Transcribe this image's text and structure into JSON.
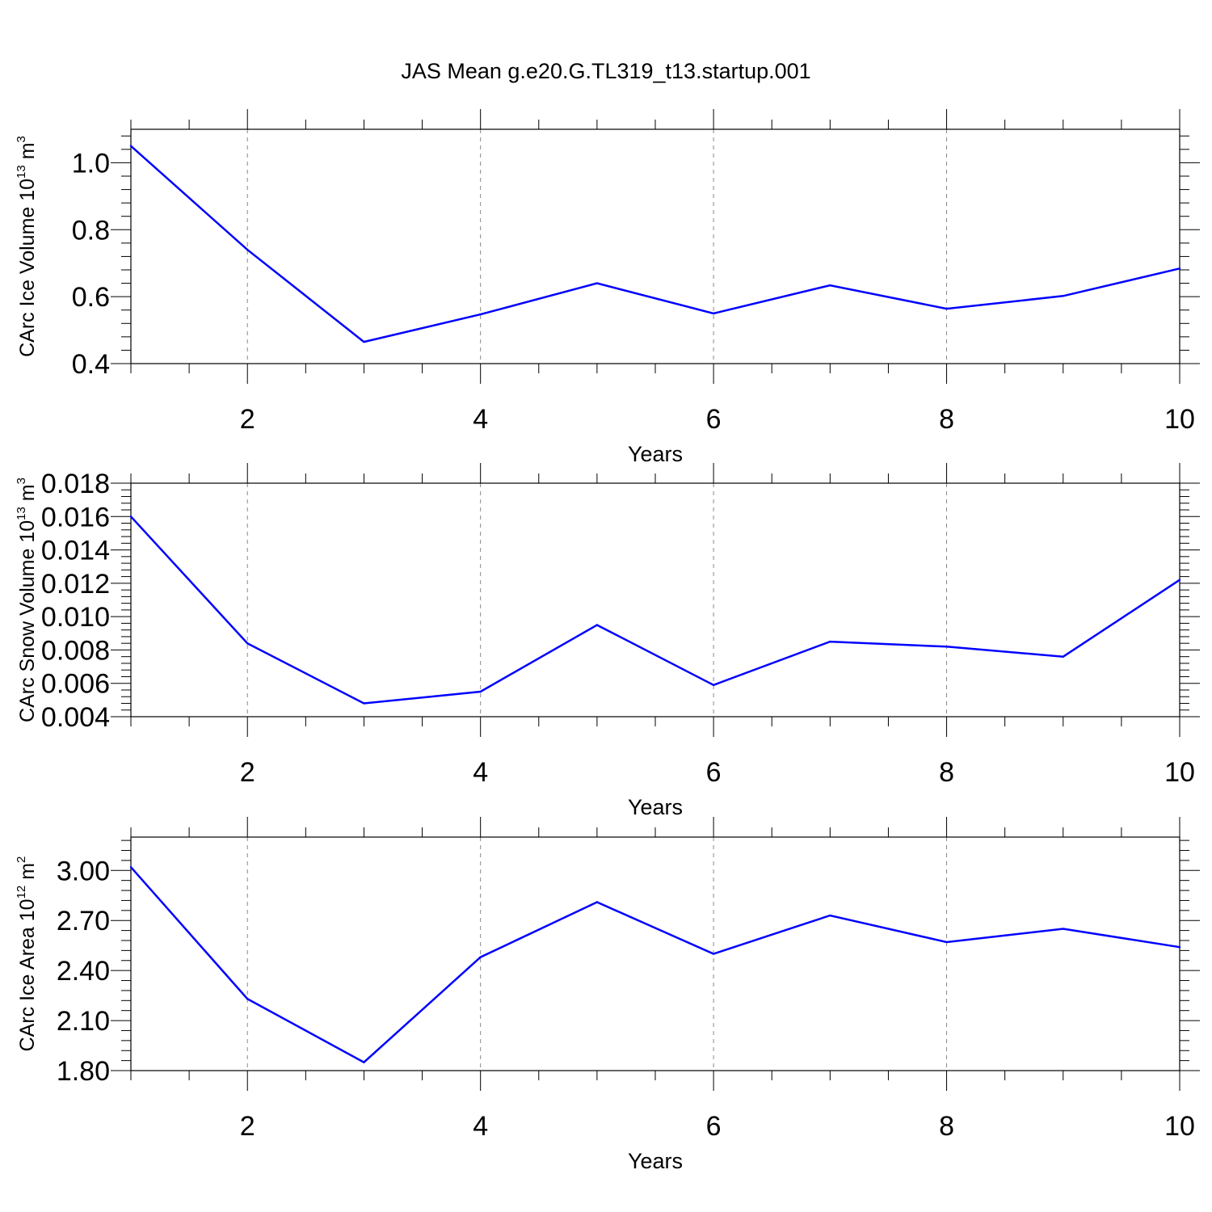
{
  "title": "JAS Mean g.e20.G.TL319_t13.startup.001",
  "chart_data": [
    {
      "type": "line",
      "ylabel": "CArc Ice Volume 10",
      "ylabel_exp": "13",
      "ylabel_unit": " m",
      "ylabel_unit_exp": "3",
      "xlabel": "Years",
      "x": [
        1,
        2,
        3,
        4,
        5,
        6,
        7,
        8,
        9,
        10
      ],
      "values": [
        1.05,
        0.74,
        0.465,
        0.547,
        0.64,
        0.55,
        0.634,
        0.564,
        0.602,
        0.684
      ],
      "xlim": [
        1,
        10
      ],
      "ylim": [
        0.4,
        1.1
      ],
      "xticks": [
        "2",
        "4",
        "6",
        "8",
        "10"
      ],
      "yticks": [
        "0.4",
        "0.6",
        "0.8",
        "1.0"
      ],
      "color": "#0000ff",
      "grid": "vertical dashed"
    },
    {
      "type": "line",
      "ylabel": "CArc Snow Volume 10",
      "ylabel_exp": "13",
      "ylabel_unit": " m",
      "ylabel_unit_exp": "3",
      "xlabel": "Years",
      "x": [
        1,
        2,
        3,
        4,
        5,
        6,
        7,
        8,
        9,
        10
      ],
      "values": [
        0.016,
        0.0084,
        0.0048,
        0.0055,
        0.0095,
        0.0059,
        0.0085,
        0.0082,
        0.0076,
        0.0122
      ],
      "xlim": [
        1,
        10
      ],
      "ylim": [
        0.004,
        0.018
      ],
      "xticks": [
        "2",
        "4",
        "6",
        "8",
        "10"
      ],
      "yticks": [
        "0.004",
        "0.006",
        "0.008",
        "0.010",
        "0.012",
        "0.014",
        "0.016",
        "0.018"
      ],
      "color": "#0000ff",
      "grid": "vertical dashed"
    },
    {
      "type": "line",
      "ylabel": "CArc Ice Area 10",
      "ylabel_exp": "12",
      "ylabel_unit": " m",
      "ylabel_unit_exp": "2",
      "xlabel": "Years",
      "x": [
        1,
        2,
        3,
        4,
        5,
        6,
        7,
        8,
        9,
        10
      ],
      "values": [
        3.02,
        2.23,
        1.85,
        2.48,
        2.81,
        2.5,
        2.73,
        2.57,
        2.65,
        2.54
      ],
      "xlim": [
        1,
        10
      ],
      "ylim": [
        1.8,
        3.2
      ],
      "xticks": [
        "2",
        "4",
        "6",
        "8",
        "10"
      ],
      "yticks": [
        "1.80",
        "2.10",
        "2.40",
        "2.70",
        "3.00"
      ],
      "color": "#0000ff",
      "grid": "vertical dashed"
    }
  ]
}
